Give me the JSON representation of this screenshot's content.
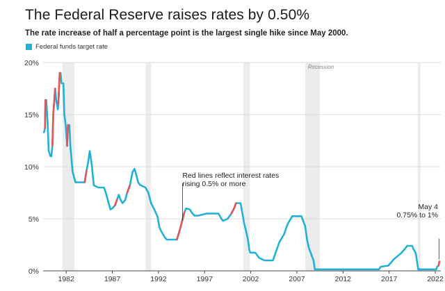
{
  "header": {
    "title": "The Federal Reserve raises rates by 0.50%",
    "subtitle": "The rate increase of half a percentage point is the largest single hike since May 2000."
  },
  "legend": {
    "label": "Federal funds target rate"
  },
  "colors": {
    "line": "#21b1d6",
    "hike": "#e2555a",
    "recession": "#ececec",
    "grid": "#dddddd",
    "axis": "#444444"
  },
  "chart_data": {
    "type": "line",
    "title": "The Federal Reserve raises rates by 0.50%",
    "xlabel": "",
    "ylabel": "",
    "xlim": [
      1979.5,
      2022.6
    ],
    "ylim": [
      0,
      20
    ],
    "x_ticks": [
      1982,
      1987,
      1992,
      1997,
      2002,
      2007,
      2012,
      2017,
      2022
    ],
    "y_ticks": [
      {
        "value": 0,
        "label": "0%"
      },
      {
        "value": 5,
        "label": "5%"
      },
      {
        "value": 10,
        "label": "10%"
      },
      {
        "value": 15,
        "label": "15%"
      },
      {
        "value": 20,
        "label": "20%"
      }
    ],
    "recessions": [
      [
        1981.6,
        1982.9
      ],
      [
        1990.6,
        1991.2
      ],
      [
        2001.2,
        2001.9
      ],
      [
        2007.9,
        2009.5
      ],
      [
        2020.1,
        2020.4
      ]
    ],
    "recession_label": "Recession",
    "series": [
      {
        "name": "Federal funds target rate",
        "points": [
          [
            1979.6,
            13.3
          ],
          [
            1979.7,
            13.7
          ],
          [
            1979.75,
            16.4
          ],
          [
            1979.85,
            16.4
          ],
          [
            1980.0,
            14
          ],
          [
            1980.1,
            11.5
          ],
          [
            1980.3,
            11
          ],
          [
            1980.4,
            11
          ],
          [
            1980.5,
            12
          ],
          [
            1980.6,
            15
          ],
          [
            1980.8,
            17.5
          ],
          [
            1980.9,
            16.5
          ],
          [
            1981.1,
            15.5
          ],
          [
            1981.15,
            16
          ],
          [
            1981.3,
            19
          ],
          [
            1981.4,
            19
          ],
          [
            1981.5,
            18
          ],
          [
            1981.7,
            18
          ],
          [
            1981.8,
            15
          ],
          [
            1981.95,
            14
          ],
          [
            1982.1,
            12
          ],
          [
            1982.2,
            14
          ],
          [
            1982.35,
            14
          ],
          [
            1982.45,
            12
          ],
          [
            1982.6,
            10.5
          ],
          [
            1982.7,
            9.5
          ],
          [
            1982.85,
            9
          ],
          [
            1983.0,
            8.5
          ],
          [
            1983.6,
            8.5
          ],
          [
            1984.0,
            8.5
          ],
          [
            1984.2,
            9.6
          ],
          [
            1984.4,
            10.5
          ],
          [
            1984.55,
            11.5
          ],
          [
            1984.65,
            11
          ],
          [
            1984.8,
            10
          ],
          [
            1984.9,
            9
          ],
          [
            1985.0,
            8.2
          ],
          [
            1985.5,
            8
          ],
          [
            1986.1,
            8
          ],
          [
            1986.3,
            7.5
          ],
          [
            1986.6,
            6.5
          ],
          [
            1986.8,
            5.9
          ],
          [
            1987.0,
            6
          ],
          [
            1987.3,
            6.3
          ],
          [
            1987.5,
            6.8
          ],
          [
            1987.7,
            7.3
          ],
          [
            1987.9,
            6.8
          ],
          [
            1988.1,
            6.5
          ],
          [
            1988.4,
            6.8
          ],
          [
            1988.6,
            7.5
          ],
          [
            1988.9,
            8.2
          ],
          [
            1989.2,
            9.5
          ],
          [
            1989.4,
            9.8
          ],
          [
            1989.6,
            9.2
          ],
          [
            1989.8,
            8.5
          ],
          [
            1990.0,
            8.25
          ],
          [
            1990.6,
            8
          ],
          [
            1990.9,
            7.5
          ],
          [
            1991.2,
            6.5
          ],
          [
            1991.6,
            5.8
          ],
          [
            1991.9,
            5.2
          ],
          [
            1992.1,
            4.2
          ],
          [
            1992.3,
            3.8
          ],
          [
            1992.5,
            3.5
          ],
          [
            1992.7,
            3.2
          ],
          [
            1992.9,
            3
          ],
          [
            1993.5,
            3
          ],
          [
            1994.0,
            3
          ],
          [
            1994.2,
            3.6
          ],
          [
            1994.4,
            4.2
          ],
          [
            1994.6,
            4.9
          ],
          [
            1994.8,
            5.6
          ],
          [
            1995.0,
            6
          ],
          [
            1995.4,
            5.9
          ],
          [
            1995.6,
            5.6
          ],
          [
            1995.9,
            5.3
          ],
          [
            1996.3,
            5.3
          ],
          [
            1997.2,
            5.5
          ],
          [
            1997.8,
            5.5
          ],
          [
            1998.5,
            5.5
          ],
          [
            1998.7,
            5.2
          ],
          [
            1998.9,
            4.9
          ],
          [
            1999.0,
            4.8
          ],
          [
            1999.5,
            5
          ],
          [
            1999.9,
            5.5
          ],
          [
            2000.2,
            6
          ],
          [
            2000.4,
            6.5
          ],
          [
            2000.9,
            6.5
          ],
          [
            2001.1,
            5.5
          ],
          [
            2001.3,
            4.5
          ],
          [
            2001.5,
            3.8
          ],
          [
            2001.7,
            3
          ],
          [
            2001.85,
            2
          ],
          [
            2001.95,
            1.75
          ],
          [
            2002.5,
            1.75
          ],
          [
            2002.9,
            1.25
          ],
          [
            2003.5,
            1
          ],
          [
            2004.4,
            1
          ],
          [
            2004.7,
            1.75
          ],
          [
            2005.1,
            2.75
          ],
          [
            2005.6,
            3.5
          ],
          [
            2006.0,
            4.5
          ],
          [
            2006.5,
            5.25
          ],
          [
            2007.5,
            5.25
          ],
          [
            2007.7,
            4.75
          ],
          [
            2007.9,
            4.3
          ],
          [
            2008.1,
            3
          ],
          [
            2008.3,
            2.2
          ],
          [
            2008.8,
            1
          ],
          [
            2008.95,
            0.15
          ],
          [
            2009.5,
            0.15
          ],
          [
            2015.9,
            0.15
          ],
          [
            2016.1,
            0.4
          ],
          [
            2016.9,
            0.5
          ],
          [
            2017.3,
            0.9
          ],
          [
            2017.5,
            1.1
          ],
          [
            2017.9,
            1.4
          ],
          [
            2018.3,
            1.7
          ],
          [
            2018.7,
            2.1
          ],
          [
            2018.95,
            2.4
          ],
          [
            2019.5,
            2.4
          ],
          [
            2019.6,
            2.15
          ],
          [
            2019.8,
            1.85
          ],
          [
            2019.9,
            1.6
          ],
          [
            2020.15,
            0.15
          ],
          [
            2022.1,
            0.15
          ],
          [
            2022.2,
            0.4
          ],
          [
            2022.35,
            0.5
          ],
          [
            2022.45,
            0.9
          ]
        ],
        "hikes": [
          [
            [
              1979.7,
              13.7
            ],
            [
              1979.75,
              16.4
            ]
          ],
          [
            [
              1980.5,
              12
            ],
            [
              1980.6,
              15
            ],
            [
              1980.8,
              17.5
            ]
          ],
          [
            [
              1981.15,
              16
            ],
            [
              1981.3,
              19
            ]
          ],
          [
            [
              1982.1,
              12
            ],
            [
              1982.2,
              14
            ]
          ],
          [
            [
              1984.0,
              8.5
            ],
            [
              1984.2,
              9.6
            ]
          ],
          [
            [
              1987.3,
              6.3
            ],
            [
              1987.5,
              6.8
            ]
          ],
          [
            [
              1988.6,
              7.5
            ],
            [
              1988.9,
              8.2
            ]
          ],
          [
            [
              1994.0,
              3
            ],
            [
              1994.2,
              3.6
            ],
            [
              1994.4,
              4.2
            ],
            [
              1994.6,
              4.9
            ],
            [
              1994.8,
              5.6
            ]
          ],
          [
            [
              1999.9,
              5.5
            ],
            [
              2000.2,
              6
            ],
            [
              2000.4,
              6.5
            ]
          ],
          [
            [
              2022.35,
              0.5
            ],
            [
              2022.45,
              0.9
            ]
          ]
        ]
      }
    ],
    "annotations": [
      {
        "lines": [
          "Red lines reflect interest rates",
          "rising 0.5% or more"
        ],
        "x": 1994.6,
        "y": 7.6,
        "anchor": "start",
        "pointer": [
          [
            1994.6,
            8.4
          ],
          [
            1994.6,
            4.8
          ]
        ]
      },
      {
        "lines": [
          "May 4",
          "0.75% to 1%"
        ],
        "x": 2022.3,
        "y": 4.6,
        "anchor": "end",
        "pointer": [
          [
            2022.4,
            3.1
          ],
          [
            2022.4,
            1.1
          ]
        ]
      }
    ]
  }
}
